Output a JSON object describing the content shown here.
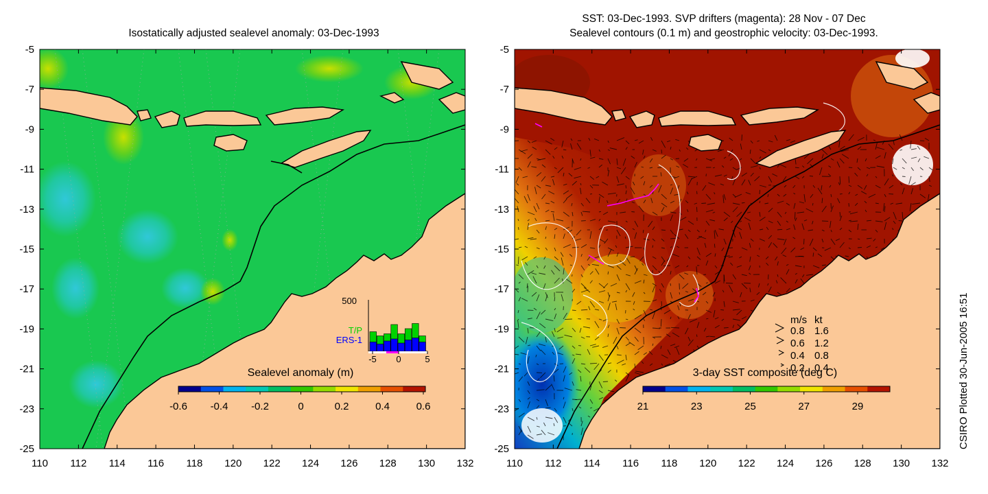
{
  "left_panel": {
    "title": "Isostatically adjusted sealevel anomaly: 03-Dec-1993",
    "x_ticks": [
      "110",
      "112",
      "114",
      "116",
      "118",
      "120",
      "122",
      "124",
      "126",
      "128",
      "130",
      "132"
    ],
    "y_ticks": [
      "-5",
      "-7",
      "-9",
      "-11",
      "-13",
      "-15",
      "-17",
      "-19",
      "-21",
      "-23",
      "-25"
    ],
    "colorbar": {
      "label": "Sealevel anomaly (m)",
      "ticks": [
        "-0.6",
        "-0.4",
        "-0.2",
        "0",
        "0.2",
        "0.4",
        "0.6"
      ],
      "colors": [
        "#00008c",
        "#0050e6",
        "#00b4f0",
        "#00c8b4",
        "#00be64",
        "#32c800",
        "#96dc00",
        "#f0e600",
        "#f0a000",
        "#e65000",
        "#b41400"
      ]
    },
    "inset": {
      "y_label": "500",
      "legend_tp": "T/P",
      "legend_ers": "ERS-1",
      "legend_tp_color": "#00d200",
      "legend_ers_color": "#0000ff",
      "x_ticks": [
        "-5",
        "0",
        "5"
      ],
      "counts_tp": [
        190,
        150,
        170,
        260,
        170,
        220,
        270,
        150
      ],
      "counts_ers": [
        90,
        70,
        100,
        120,
        80,
        110,
        130,
        90
      ]
    }
  },
  "right_panel": {
    "title_line1": "SST: 03-Dec-1993. SVP drifters (magenta): 28 Nov - 07 Dec",
    "title_line2": "Sealevel contours (0.1 m) and geostrophic velocity: 03-Dec-1993.",
    "x_ticks": [
      "110",
      "112",
      "114",
      "116",
      "118",
      "120",
      "122",
      "124",
      "126",
      "128",
      "130",
      "132"
    ],
    "y_ticks": [
      "-5",
      "-7",
      "-9",
      "-11",
      "-13",
      "-15",
      "-17",
      "-19",
      "-21",
      "-23",
      "-25"
    ],
    "colorbar": {
      "label": "3-day SST composite (deg C)",
      "ticks": [
        "21",
        "23",
        "25",
        "27",
        "29"
      ],
      "colors": [
        "#00008c",
        "#0050e6",
        "#00b4f0",
        "#00c8b4",
        "#00be64",
        "#32c800",
        "#96dc00",
        "#f0e600",
        "#f0a000",
        "#e65000",
        "#b41400"
      ]
    },
    "velocity_legend": {
      "header_ms": "m/s",
      "header_kt": "kt",
      "rows": [
        {
          "ms": "0.8",
          "kt": "1.6"
        },
        {
          "ms": "0.6",
          "kt": "1.2"
        },
        {
          "ms": "0.4",
          "kt": "0.8"
        },
        {
          "ms": "0.2",
          "kt": "0.4"
        }
      ]
    }
  },
  "footer": "CSIRO Plotted 30-Jun-2005 16:51",
  "colors": {
    "land": "#fbc897",
    "sst_hot": "#a01400",
    "sst_warm": "#e06010",
    "sst_mid": "#f0b000",
    "sst_cool": "#00b4d0",
    "sst_cold": "#0040c0",
    "sla_green": "#19c850",
    "sla_light": "#40d030",
    "sla_cyan": "#20c8a0",
    "drifter": "#ff00ff"
  }
}
